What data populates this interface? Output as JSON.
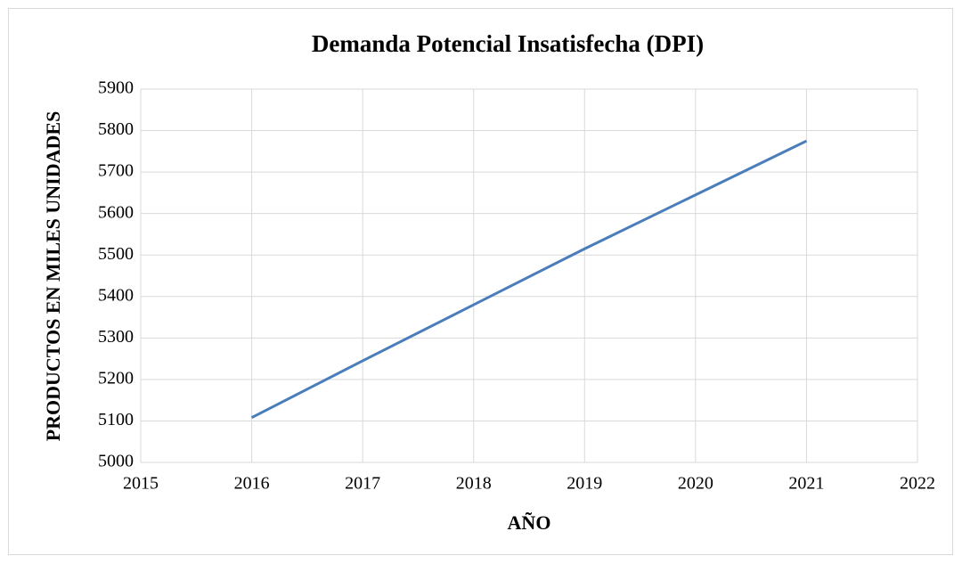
{
  "chart_data": {
    "type": "line",
    "title": "Demanda Potencial Insatisfecha (DPI)",
    "x_label": "AÑO",
    "y_label": "PRODUCTOS EN MILES UNIDADES",
    "x": [
      2016,
      2017,
      2018,
      2019,
      2020,
      2021
    ],
    "series": [
      {
        "name": "DPI",
        "color": "#4a7ebb",
        "values": [
          5108,
          5245,
          5380,
          5515,
          5645,
          5775
        ]
      }
    ],
    "xlim": [
      2015,
      2022
    ],
    "xticks": [
      2015,
      2016,
      2017,
      2018,
      2019,
      2020,
      2021,
      2022
    ],
    "ylim": [
      5000,
      5900
    ],
    "yticks": [
      5000,
      5100,
      5200,
      5300,
      5400,
      5500,
      5600,
      5700,
      5800,
      5900
    ],
    "grid": true
  }
}
